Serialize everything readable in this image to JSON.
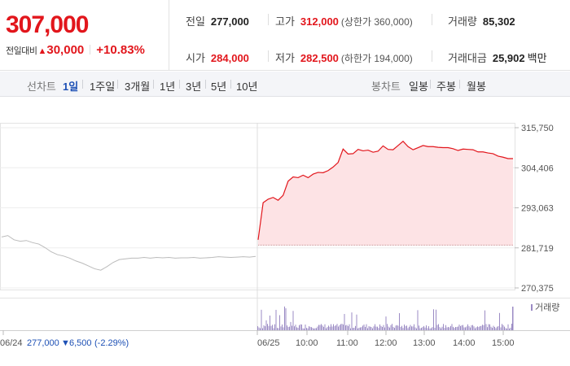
{
  "summary": {
    "current_price": "307,000",
    "change_label": "전일대비",
    "change_arrow": "▲",
    "change_value": "30,000",
    "change_percent": "+10.83%"
  },
  "stats": {
    "prev_close": {
      "label": "전일",
      "value": "277,000"
    },
    "open": {
      "label": "시가",
      "value": "284,000"
    },
    "high": {
      "label": "고가",
      "value": "312,000",
      "limit": "(상한가 360,000)"
    },
    "low": {
      "label": "저가",
      "value": "282,500",
      "limit": "(하한가 194,000)"
    },
    "volume": {
      "label": "거래량",
      "value": "85,302"
    },
    "amount": {
      "label": "거래대금",
      "value": "25,902",
      "unit": "백만"
    }
  },
  "toolbar": {
    "line_chart_label": "선차트",
    "periods": [
      "1일",
      "1주일",
      "3개월",
      "1년",
      "3년",
      "5년",
      "10년"
    ],
    "active_period": "1일",
    "candle_label": "봉차트",
    "candles": [
      "일봉",
      "주봉",
      "월봉"
    ]
  },
  "colors": {
    "rise": "#e2161c",
    "fall": "#1d50b5",
    "area_fill": "#fde3e5",
    "prev_day_line": "#bbbbbb",
    "volume_bar": "#9b8bc4"
  },
  "chart_data": {
    "type": "line",
    "y_ticks": [
      "315,750",
      "304,406",
      "293,063",
      "281,719",
      "270,375"
    ],
    "ylim": [
      270375,
      315750
    ],
    "reference_price": 282500,
    "x_ticks": [
      "06/25",
      "10:00",
      "11:00",
      "12:00",
      "13:00",
      "14:00",
      "15:00"
    ],
    "prev_day_caption": {
      "date": "06/24",
      "close": "277,000",
      "arrow": "▼",
      "change": "6,500",
      "percent": "(-2.29%)"
    },
    "legend_volume": "거래량",
    "prev_day_series": [
      284800,
      285200,
      284000,
      283600,
      283800,
      283200,
      282800,
      281800,
      280600,
      279800,
      279400,
      278800,
      278000,
      277400,
      276600,
      275800,
      275400,
      276400,
      277600,
      278400,
      278600,
      278800,
      278800,
      279000,
      278800,
      279000,
      278900,
      279000,
      278800,
      278900,
      278900,
      279000,
      278800,
      278900,
      279000,
      279200,
      279100,
      279000,
      279100,
      279200,
      279100,
      279300
    ],
    "today_series": [
      284000,
      294500,
      295500,
      296000,
      295200,
      296600,
      300600,
      301800,
      301600,
      302300,
      301600,
      302600,
      303100,
      303000,
      303600,
      304600,
      305900,
      309700,
      308300,
      308400,
      309600,
      309200,
      309400,
      308800,
      309100,
      310600,
      309600,
      309500,
      310700,
      311900,
      310400,
      309500,
      310100,
      310700,
      310400,
      310400,
      310200,
      310100,
      310100,
      309800,
      309300,
      309700,
      309600,
      309500,
      308900,
      308900,
      308600,
      308400,
      307700,
      307400,
      307000,
      307000
    ]
  }
}
